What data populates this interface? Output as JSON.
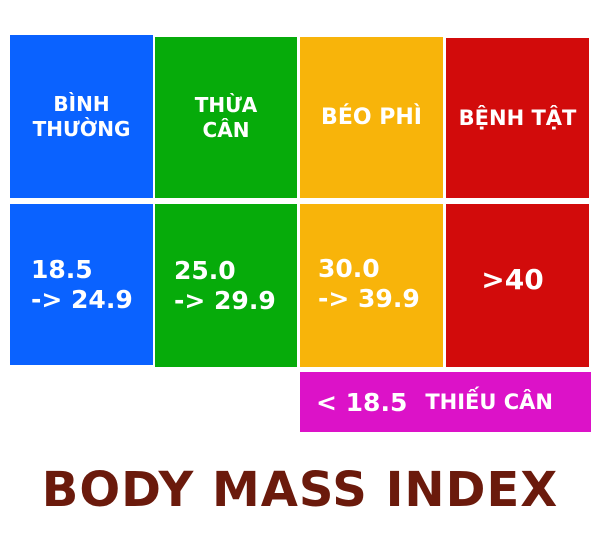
{
  "colors": {
    "normal": "#0a62ff",
    "overweight": "#06ab0a",
    "obese": "#f8b40a",
    "disease": "#d20b0b",
    "underweight": "#dc12c8",
    "title": "#6b1a0c"
  },
  "categories": [
    {
      "label_line1": "BÌNH",
      "label_line2": "THƯỜNG",
      "range_line1": "18.5",
      "range_line2": "-> 24.9"
    },
    {
      "label_line1": "THỪA",
      "label_line2": "CÂN",
      "range_line1": "25.0",
      "range_line2": "-> 29.9"
    },
    {
      "label_line1": "BÉO PHÌ",
      "label_line2": "",
      "range_line1": "30.0",
      "range_line2": "-> 39.9"
    },
    {
      "label_line1": "BỆNH TẬT",
      "label_line2": "",
      "range_line1": ">40",
      "range_line2": ""
    }
  ],
  "underweight": {
    "range": "< 18.5",
    "label": "THIẾU CÂN"
  },
  "title": "BODY MASS INDEX"
}
